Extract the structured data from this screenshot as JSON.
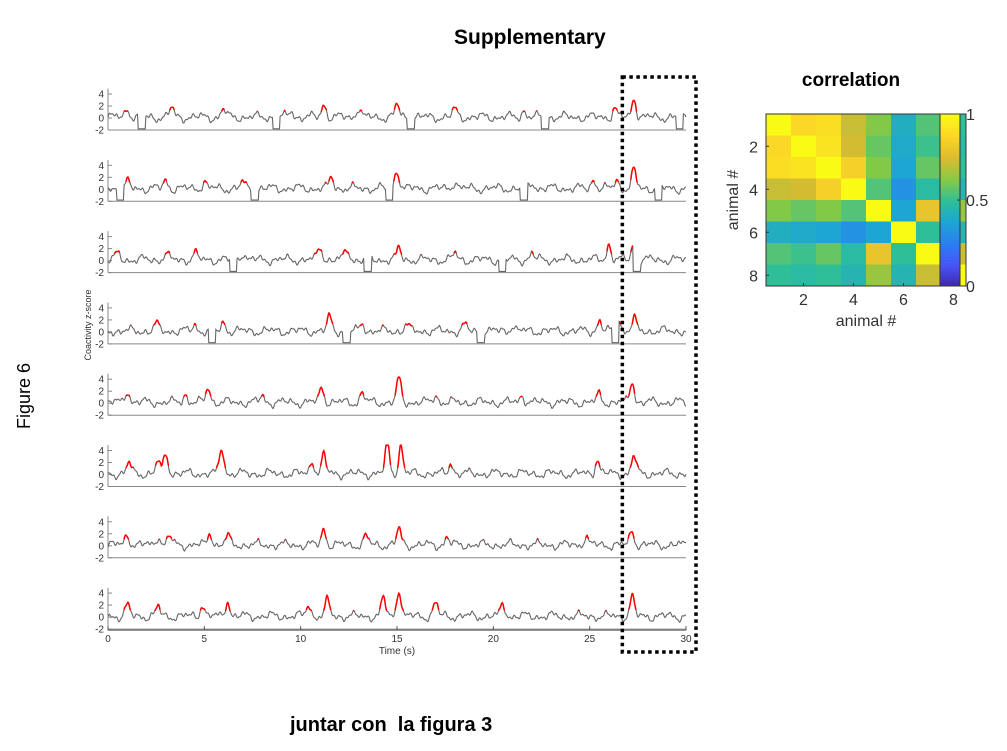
{
  "page": {
    "title": "Supplementary",
    "figure_label": "Figure 6",
    "footer_note": "juntar con  la figura 3"
  },
  "chart_data": [
    {
      "type": "line",
      "title": "",
      "xlabel": "Time (s)",
      "ylabel": "Coactivity z-score",
      "xlim": [
        0,
        30
      ],
      "ylim": [
        -2,
        5
      ],
      "x_ticks": [
        "0",
        "5",
        "10",
        "15",
        "20",
        "25",
        "30"
      ],
      "y_ticks": [
        "4",
        "2",
        "0",
        "-2"
      ],
      "trace_color": "#666666",
      "highlight_color": "#ff0000",
      "highlight_threshold": 1,
      "highlight_window": [
        26.8,
        30
      ],
      "series": [
        {
          "keyframes": [
            [
              1,
              1.5
            ],
            [
              3.3,
              1.5
            ],
            [
              6,
              1.3
            ],
            [
              9.5,
              1
            ],
            [
              11.2,
              2.2
            ],
            [
              13,
              1.6
            ],
            [
              15,
              2
            ],
            [
              18,
              1.3
            ],
            [
              21.6,
              1.1
            ],
            [
              26.3,
              1.4
            ],
            [
              27.3,
              3.2
            ]
          ]
        },
        {
          "keyframes": [
            [
              1,
              1
            ],
            [
              3,
              1.3
            ],
            [
              5,
              1.1
            ],
            [
              7,
              1
            ],
            [
              11.6,
              1.8
            ],
            [
              15,
              3.2
            ],
            [
              18,
              1.2
            ],
            [
              22,
              1
            ],
            [
              25.2,
              1.5
            ],
            [
              26.4,
              1.4
            ],
            [
              27.3,
              3
            ]
          ]
        },
        {
          "keyframes": [
            [
              0.5,
              1
            ],
            [
              3,
              1
            ],
            [
              4.5,
              1.1
            ],
            [
              7,
              1.2
            ],
            [
              11,
              2.2
            ],
            [
              12.4,
              1.8
            ],
            [
              15.1,
              1.8
            ],
            [
              18,
              1
            ],
            [
              22,
              1
            ],
            [
              26,
              2.5
            ],
            [
              27.3,
              3.2
            ]
          ]
        },
        {
          "keyframes": [
            [
              2.5,
              1.2
            ],
            [
              4.5,
              1
            ],
            [
              6,
              1.4
            ],
            [
              11.5,
              2.3
            ],
            [
              13.2,
              1.2
            ],
            [
              15.5,
              1.1
            ],
            [
              18.5,
              1
            ],
            [
              21,
              1
            ],
            [
              25.5,
              1.7
            ],
            [
              26.5,
              2
            ],
            [
              27.3,
              2
            ]
          ]
        },
        {
          "keyframes": [
            [
              1,
              2
            ],
            [
              4,
              1.3
            ],
            [
              5.2,
              2.5
            ],
            [
              8,
              1
            ],
            [
              11.1,
              2.6
            ],
            [
              13.2,
              1.6
            ],
            [
              15.1,
              3.9
            ],
            [
              17,
              1.2
            ],
            [
              21.5,
              1.2
            ],
            [
              25.5,
              1.3
            ],
            [
              27.2,
              3.6
            ]
          ]
        },
        {
          "keyframes": [
            [
              1.1,
              1.8
            ],
            [
              2.6,
              2
            ],
            [
              3,
              3.5
            ],
            [
              5.9,
              4.3
            ],
            [
              10.6,
              2.2
            ],
            [
              11.2,
              3
            ],
            [
              14.5,
              4.8
            ],
            [
              15.2,
              4.6
            ],
            [
              17.8,
              1.8
            ],
            [
              25.4,
              2.4
            ],
            [
              27.3,
              3
            ]
          ]
        },
        {
          "keyframes": [
            [
              1,
              1.8
            ],
            [
              2.6,
              1.5
            ],
            [
              3.2,
              1.5
            ],
            [
              5.3,
              2
            ],
            [
              6.2,
              1.5
            ],
            [
              11.2,
              2.7
            ],
            [
              13.4,
              1.5
            ],
            [
              15.1,
              2.6
            ],
            [
              17.6,
              1.2
            ],
            [
              24.8,
              1.4
            ],
            [
              27.2,
              2.4
            ]
          ]
        },
        {
          "keyframes": [
            [
              1,
              1.8
            ],
            [
              2.6,
              1.5
            ],
            [
              4.9,
              2
            ],
            [
              6.2,
              2.6
            ],
            [
              10.4,
              2
            ],
            [
              11.4,
              2.6
            ],
            [
              14.3,
              3
            ],
            [
              15.1,
              4.6
            ],
            [
              17,
              2.3
            ],
            [
              20.5,
              2
            ],
            [
              27.2,
              3.2
            ]
          ]
        }
      ]
    },
    {
      "type": "heatmap",
      "title": "correlation",
      "xlabel": "animal #",
      "ylabel": "animal #",
      "x_ticks": [
        "2",
        "4",
        "6",
        "8"
      ],
      "y_ticks": [
        "2",
        "4",
        "6",
        "8"
      ],
      "colorbar_ticks": [
        "1",
        "0.5",
        "0"
      ],
      "clim": [
        0,
        1
      ],
      "colormap": [
        "#3e26a8",
        "#4853f6",
        "#2c7ef0",
        "#1ca4d5",
        "#2ebf98",
        "#87c945",
        "#dbbb30",
        "#fbd527",
        "#f9fb15"
      ],
      "values": [
        [
          1.0,
          0.88,
          0.9,
          0.72,
          0.62,
          0.42,
          0.55,
          0.5
        ],
        [
          0.88,
          1.0,
          0.92,
          0.74,
          0.58,
          0.4,
          0.52,
          0.48
        ],
        [
          0.9,
          0.92,
          1.0,
          0.85,
          0.62,
          0.38,
          0.58,
          0.5
        ],
        [
          0.72,
          0.74,
          0.85,
          1.0,
          0.55,
          0.32,
          0.48,
          0.45
        ],
        [
          0.62,
          0.58,
          0.62,
          0.55,
          1.0,
          0.38,
          0.8,
          0.65
        ],
        [
          0.42,
          0.4,
          0.38,
          0.32,
          0.38,
          1.0,
          0.5,
          0.45
        ],
        [
          0.55,
          0.52,
          0.58,
          0.48,
          0.8,
          0.5,
          1.0,
          0.72
        ],
        [
          0.5,
          0.48,
          0.5,
          0.45,
          0.65,
          0.45,
          0.72,
          1.0
        ]
      ]
    }
  ]
}
